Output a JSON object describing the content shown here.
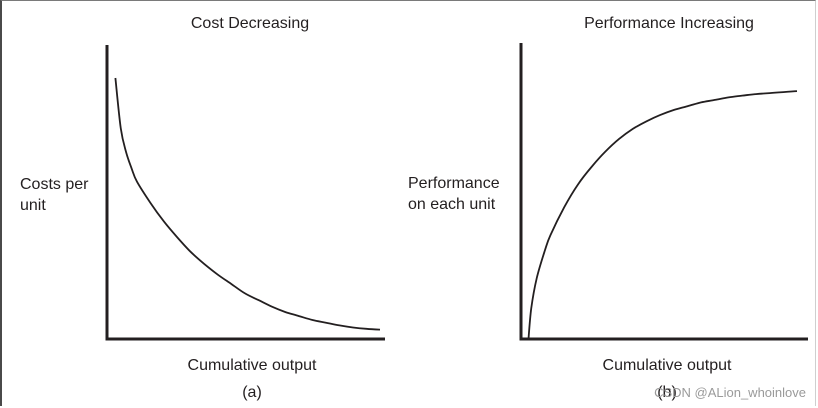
{
  "chart_data": [
    {
      "type": "line",
      "panel_label": "(a)",
      "title": "Cost Decreasing",
      "xlabel": "Cumulative output",
      "ylabel_lines": [
        "Costs per",
        "unit"
      ],
      "grid": false,
      "x_ticks_shown": false,
      "y_ticks_shown": false,
      "xlim": [
        0,
        1
      ],
      "ylim": [
        0,
        1
      ],
      "series": [
        {
          "x": [
            0.02,
            0.04,
            0.06,
            0.08,
            0.1,
            0.15,
            0.2,
            0.25,
            0.3,
            0.35,
            0.4,
            0.45,
            0.5,
            0.55,
            0.6,
            0.65,
            0.7,
            0.75,
            0.8,
            0.85,
            0.9,
            0.95,
            1.0
          ],
          "y": [
            0.97,
            0.78,
            0.69,
            0.63,
            0.58,
            0.5,
            0.43,
            0.37,
            0.315,
            0.27,
            0.23,
            0.195,
            0.16,
            0.135,
            0.11,
            0.09,
            0.075,
            0.06,
            0.05,
            0.04,
            0.032,
            0.027,
            0.024
          ]
        }
      ]
    },
    {
      "type": "line",
      "panel_label": "(b)",
      "title": "Performance Increasing",
      "xlabel": "Cumulative output",
      "ylabel_lines": [
        "Performance",
        "on each unit"
      ],
      "grid": false,
      "x_ticks_shown": false,
      "y_ticks_shown": false,
      "xlim": [
        0,
        1
      ],
      "ylim": [
        0,
        1
      ],
      "series": [
        {
          "x": [
            0.02,
            0.03,
            0.05,
            0.08,
            0.1,
            0.15,
            0.2,
            0.25,
            0.3,
            0.35,
            0.4,
            0.45,
            0.5,
            0.55,
            0.6,
            0.65,
            0.7,
            0.75,
            0.8,
            0.85,
            0.9,
            0.95,
            1.0
          ],
          "y": [
            0.0,
            0.12,
            0.24,
            0.35,
            0.41,
            0.52,
            0.61,
            0.68,
            0.74,
            0.79,
            0.83,
            0.86,
            0.885,
            0.905,
            0.92,
            0.935,
            0.945,
            0.955,
            0.962,
            0.968,
            0.972,
            0.976,
            0.98
          ]
        }
      ]
    }
  ],
  "watermark": "CSDN @ALion_whoinlove"
}
